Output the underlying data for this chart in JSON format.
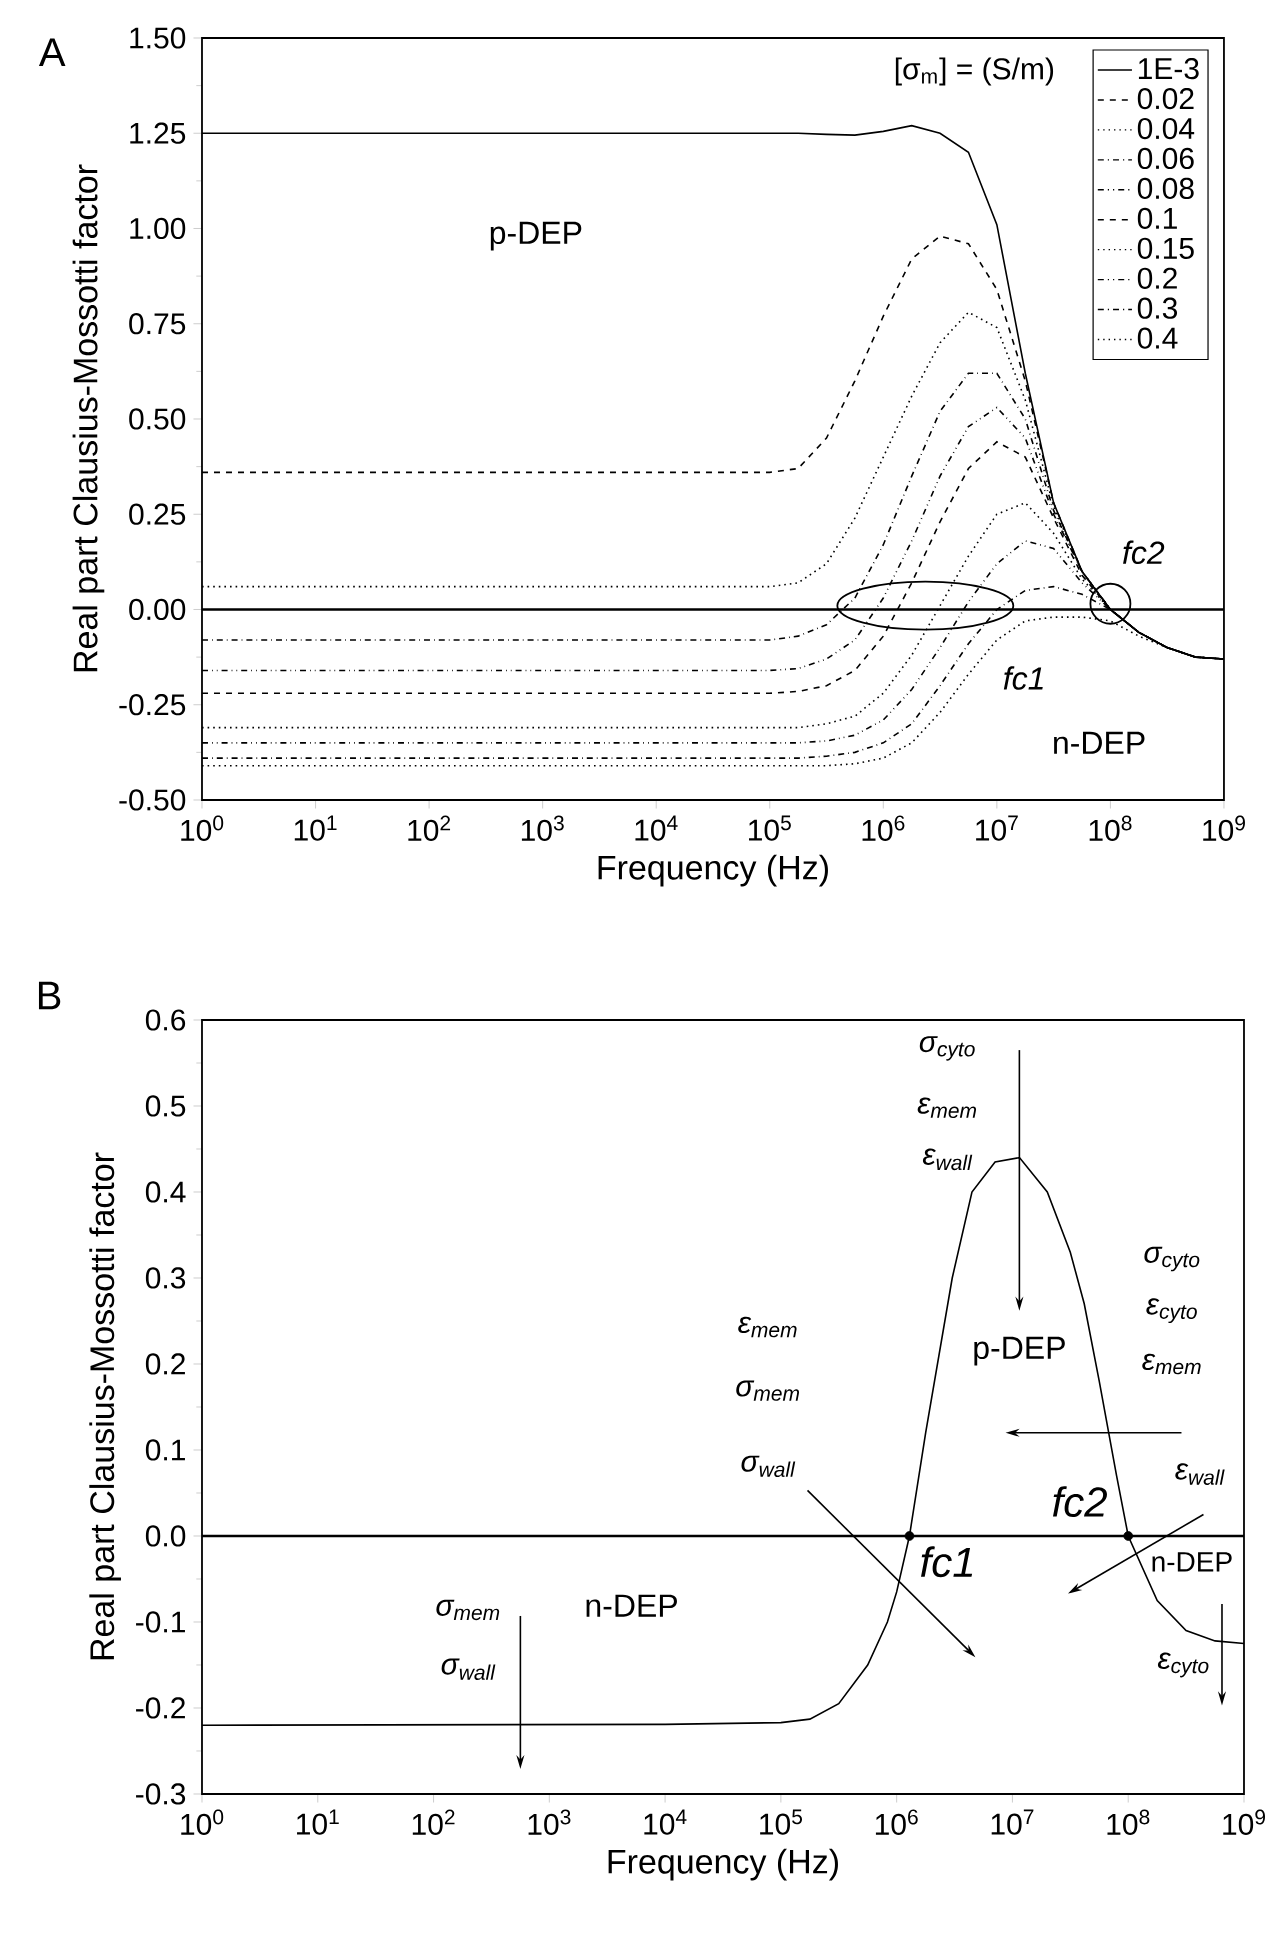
{
  "chart_data": [
    {
      "type": "line",
      "title": "A",
      "xlabel": "Frequency (Hz)",
      "ylabel": "Real part Clausius-Mossotti factor",
      "log": "x",
      "xlim": [
        1,
        1000000000.0
      ],
      "xticks": [
        {
          "value": 1,
          "label": "10$^{0}$"
        },
        {
          "value": 10,
          "label": "10$^{1}$"
        },
        {
          "value": 100,
          "label": "10$^{2}$"
        },
        {
          "value": 1000,
          "label": "10$^{3}$"
        },
        {
          "value": 10000,
          "label": "10$^{4}$"
        },
        {
          "value": 100000,
          "label": "10$^{5}$"
        },
        {
          "value": 1000000,
          "label": "10$^{6}$"
        },
        {
          "value": 10000000,
          "label": "10$^{7}$"
        },
        {
          "value": 100000000,
          "label": "10$^{8}$"
        },
        {
          "value": 1000000000,
          "label": "10$^{9}$"
        }
      ],
      "ylim": [
        -0.5,
        1.5
      ],
      "yticks": [
        {
          "value": -0.5,
          "label": "-0.50"
        },
        -0.25,
        {
          "value": 0,
          "label": "0.00"
        },
        0.25,
        {
          "value": 0.5,
          "label": "0.50"
        },
        0.75,
        {
          "value": 1,
          "label": "1.00"
        },
        1.25,
        {
          "value": 1.5,
          "label": "1.50"
        }
      ],
      "legend": "top right",
      "legend_title": "[σ$_{m}$] = (S/m)",
      "ref_lines": [
        {
          "axis": "y",
          "value": 0,
          "color": "#000000"
        }
      ],
      "annotations": [
        "p-DEP",
        "fc2",
        "fc1",
        "n-DEP"
      ],
      "x": [
        1,
        100000.0,
        178000.0,
        316000.0,
        562000.0,
        1000000.0,
        1780000.0,
        3160000.0,
        5620000.0,
        10000000.0,
        17800000.0,
        31600000.0,
        56200000.0,
        100000000.0,
        178000000.0,
        316000000.0,
        562000000.0,
        1000000000.0
      ],
      "series": [
        {
          "name": "1E-3",
          "color": "#000000",
          "line_style": "solid",
          "values": [
            1.25,
            1.25,
            1.25,
            1.247,
            1.245,
            1.255,
            1.27,
            1.25,
            1.2,
            1.01,
            0.62,
            0.28,
            0.1,
            0.0,
            -0.06,
            -0.1,
            -0.125,
            -0.13
          ]
        },
        {
          "name": "0.02",
          "color": "#000000",
          "line_style": "dashed",
          "values": [
            0.36,
            0.36,
            0.37,
            0.45,
            0.6,
            0.77,
            0.92,
            0.98,
            0.96,
            0.84,
            0.6,
            0.28,
            0.1,
            0.0,
            -0.06,
            -0.1,
            -0.125,
            -0.13
          ]
        },
        {
          "name": "0.04",
          "color": "#000000",
          "line_style": "dotted",
          "values": [
            0.06,
            0.06,
            0.07,
            0.12,
            0.24,
            0.4,
            0.56,
            0.7,
            0.78,
            0.74,
            0.55,
            0.27,
            0.1,
            0.0,
            -0.06,
            -0.1,
            -0.125,
            -0.13
          ]
        },
        {
          "name": "0.06",
          "color": "#000000",
          "line_style": "dashdot",
          "values": [
            -0.08,
            -0.08,
            -0.07,
            -0.04,
            0.03,
            0.17,
            0.35,
            0.52,
            0.62,
            0.62,
            0.5,
            0.26,
            0.1,
            0.0,
            -0.06,
            -0.1,
            -0.125,
            -0.13
          ]
        },
        {
          "name": "0.08",
          "color": "#000000",
          "line_style": "dashdotdot",
          "values": [
            -0.16,
            -0.16,
            -0.155,
            -0.13,
            -0.08,
            0.03,
            0.18,
            0.35,
            0.48,
            0.53,
            0.45,
            0.25,
            0.1,
            0.0,
            -0.06,
            -0.1,
            -0.125,
            -0.13
          ]
        },
        {
          "name": "0.1",
          "color": "#000000",
          "line_style": "dashed",
          "values": [
            -0.22,
            -0.22,
            -0.215,
            -0.2,
            -0.16,
            -0.07,
            0.07,
            0.23,
            0.37,
            0.44,
            0.4,
            0.24,
            0.09,
            0.0,
            -0.06,
            -0.1,
            -0.125,
            -0.13
          ]
        },
        {
          "name": "0.15",
          "color": "#000000",
          "line_style": "dotted",
          "values": [
            -0.31,
            -0.31,
            -0.31,
            -0.3,
            -0.28,
            -0.22,
            -0.12,
            0.01,
            0.14,
            0.25,
            0.28,
            0.2,
            0.08,
            0.0,
            -0.06,
            -0.1,
            -0.125,
            -0.13
          ]
        },
        {
          "name": "0.2",
          "color": "#000000",
          "line_style": "dashdotdot",
          "values": [
            -0.35,
            -0.35,
            -0.35,
            -0.345,
            -0.33,
            -0.29,
            -0.21,
            -0.1,
            0.02,
            0.12,
            0.18,
            0.16,
            0.07,
            0.0,
            -0.06,
            -0.1,
            -0.125,
            -0.13
          ]
        },
        {
          "name": "0.3",
          "color": "#000000",
          "line_style": "dashdot",
          "values": [
            -0.39,
            -0.39,
            -0.39,
            -0.385,
            -0.375,
            -0.35,
            -0.3,
            -0.2,
            -0.09,
            0.0,
            0.05,
            0.06,
            0.04,
            0.0,
            -0.06,
            -0.1,
            -0.125,
            -0.13
          ]
        },
        {
          "name": "0.4",
          "color": "#000000",
          "line_style": "dotted",
          "values": [
            -0.41,
            -0.41,
            -0.41,
            -0.41,
            -0.405,
            -0.39,
            -0.35,
            -0.27,
            -0.17,
            -0.08,
            -0.03,
            -0.02,
            -0.02,
            -0.03,
            -0.07,
            -0.1,
            -0.125,
            -0.13
          ]
        }
      ]
    },
    {
      "type": "line",
      "title": "B",
      "xlabel": "Frequency (Hz)",
      "ylabel": "Real part Clausius-Mossotti factor",
      "log": "x",
      "xlim": [
        1,
        1000000000.0
      ],
      "xticks": [
        {
          "value": 1,
          "label": "10$^{0}$"
        },
        {
          "value": 10,
          "label": "10$^{1}$"
        },
        {
          "value": 100,
          "label": "10$^{2}$"
        },
        {
          "value": 1000,
          "label": "10$^{3}$"
        },
        {
          "value": 10000,
          "label": "10$^{4}$"
        },
        {
          "value": 100000,
          "label": "10$^{5}$"
        },
        {
          "value": 1000000,
          "label": "10$^{6}$"
        },
        {
          "value": 10000000,
          "label": "10$^{7}$"
        },
        {
          "value": 100000000,
          "label": "10$^{8}$"
        },
        {
          "value": 1000000000,
          "label": "10$^{9}$"
        }
      ],
      "ylim": [
        -0.3,
        0.6
      ],
      "yticks": [
        -0.3,
        -0.2,
        -0.1,
        {
          "value": 0,
          "label": "0.0"
        },
        0.1,
        0.2,
        0.3,
        0.4,
        0.5,
        0.6
      ],
      "ref_lines": [
        {
          "axis": "y",
          "value": 0,
          "color": "#000000"
        }
      ],
      "annotations": [
        "σ$_{cyto}$",
        "ε$_{mem}$",
        "ε$_{wall}$",
        "σ$_{cyto}$",
        "ε$_{cyto}$",
        "ε$_{mem}$",
        "p-DEP",
        "ε$_{mem}$",
        "σ$_{mem}$",
        "σ$_{wall}$",
        "ε$_{wall}$",
        "fc2",
        "fc1",
        "n-DEP",
        "n-DEP",
        "σ$_{mem}$",
        "σ$_{wall}$",
        "ε$_{cyto}$"
      ],
      "series": [
        {
          "color": "#000000",
          "line_style": "solid",
          "x": [
            1,
            10000.0,
            100000.0,
            178000.0,
            316000.0,
            562000.0,
            832000.0,
            1000000.0,
            1290000.0,
            1780000.0,
            3020000.0,
            4470000.0,
            7080000.0,
            11500000.0,
            20000000.0,
            31600000.0,
            41700000.0,
            56200000.0,
            79400000.0,
            100000000.0,
            178000000.0,
            316000000.0,
            562000000.0,
            1000000000.0
          ],
          "values": [
            -0.22,
            -0.219,
            -0.217,
            -0.213,
            -0.195,
            -0.15,
            -0.1,
            -0.065,
            0.0,
            0.12,
            0.3,
            0.4,
            0.435,
            0.44,
            0.4,
            0.33,
            0.27,
            0.18,
            0.07,
            0.0,
            -0.075,
            -0.11,
            -0.122,
            -0.125
          ]
        },
        {
          "type": "scatter",
          "marker": "circle",
          "color": "#000000",
          "x": [
            1290000.0,
            100000000.0
          ],
          "values": [
            0.0,
            0.0
          ]
        }
      ]
    }
  ]
}
